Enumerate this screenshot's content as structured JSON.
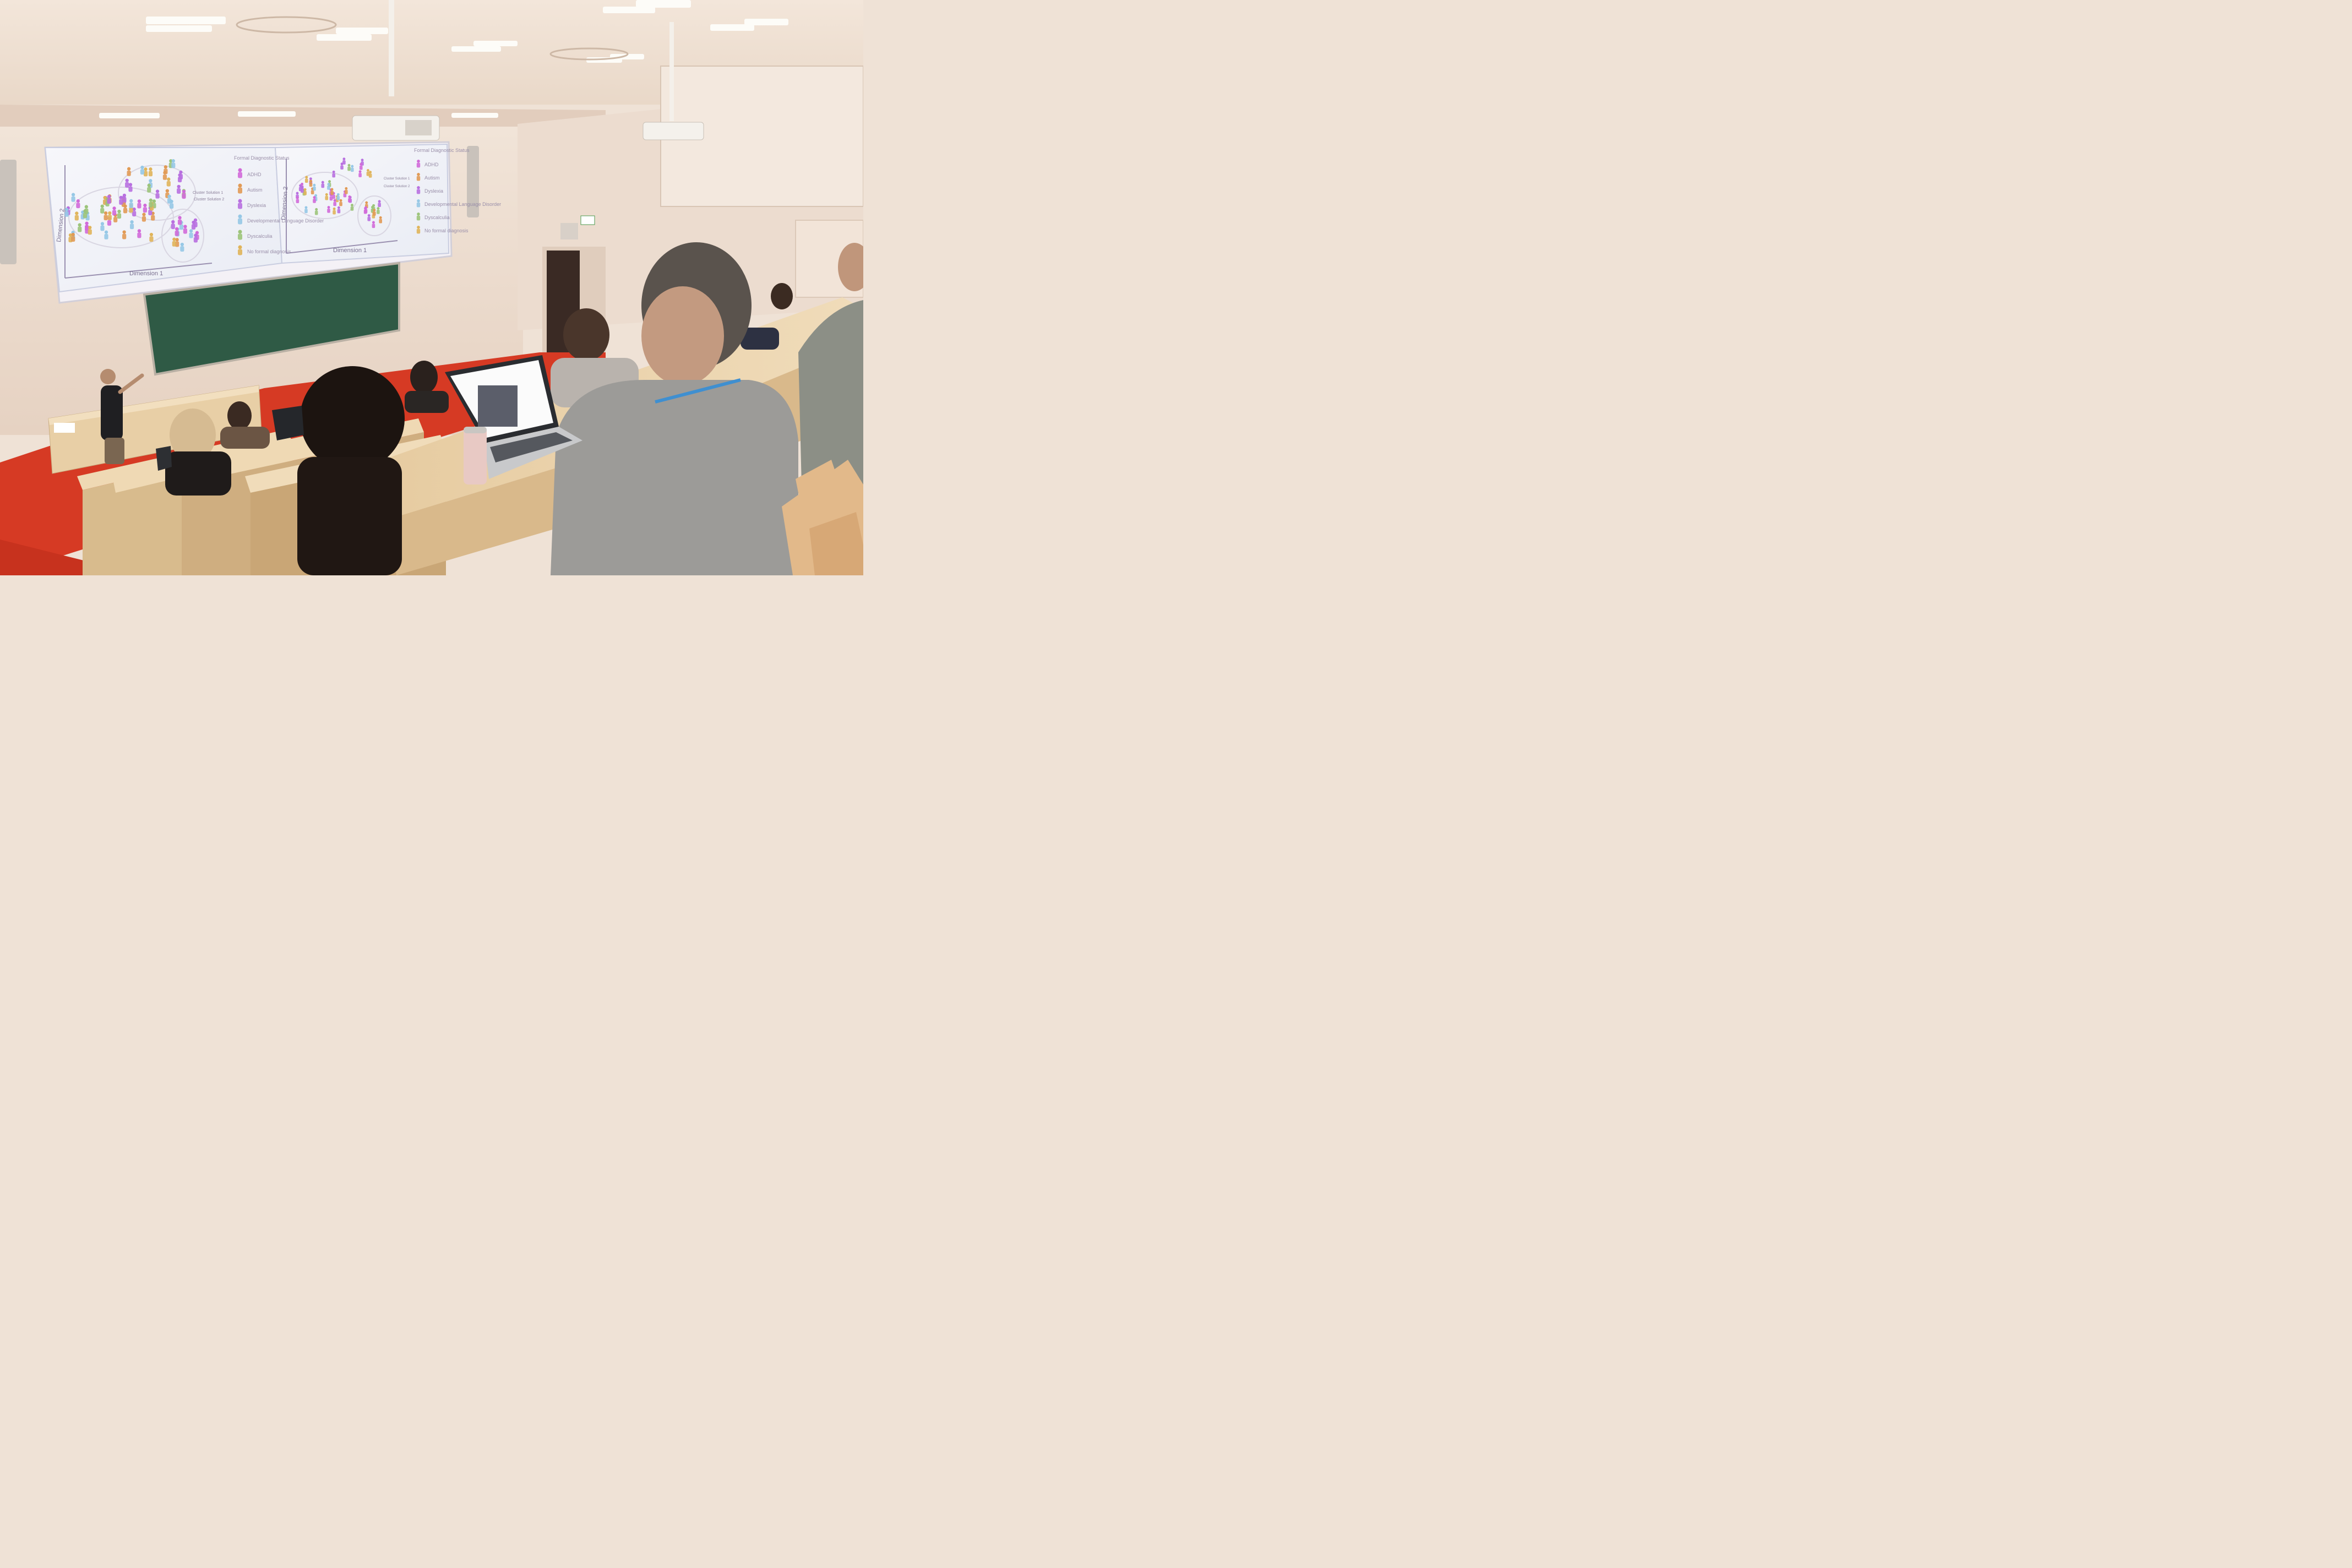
{
  "scene": {
    "kind": "lecture hall photograph",
    "floor_color": "#d63a24",
    "wall_color": "#efe2d6",
    "desk_color": "#e8cfa6",
    "chalkboard_color": "#2f5a45"
  },
  "slide_left": {
    "legend_title": "Formal Diagnostic Status",
    "legend": [
      "ADHD",
      "Autism",
      "Dyslexia",
      "Developmental Language Disorder",
      "Dyscalculia",
      "No formal diagnosis"
    ],
    "legend_colors": [
      "#d16ad9",
      "#e19a55",
      "#b870e0",
      "#96c8e6",
      "#9cc47a",
      "#e0b45a"
    ],
    "x_axis_label": "Dimension 1",
    "y_axis_label": "Dimension 2",
    "cluster_labels": [
      "Cluster Solution 1",
      "Cluster Solution 2"
    ]
  },
  "slide_right": {
    "legend_title": "Formal Diagnostic Status",
    "legend": [
      "ADHD",
      "Autism",
      "Dyslexia",
      "Developmental Language Disorder",
      "Dyscalculia",
      "No formal diagnosis"
    ],
    "x_axis_label": "Dimension 1",
    "y_axis_label": "Dimension 2",
    "cluster_labels": [
      "Cluster Solution 1",
      "Cluster Solution 2"
    ]
  }
}
